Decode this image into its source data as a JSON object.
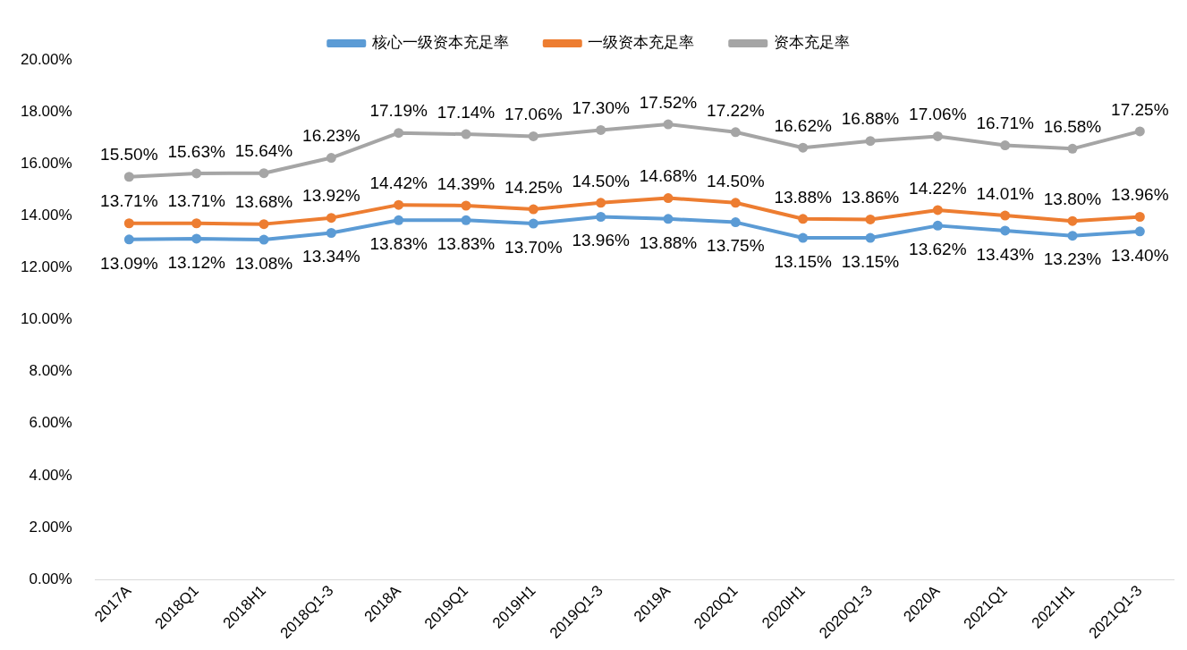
{
  "chart_data": {
    "type": "line",
    "categories": [
      "2017A",
      "2018Q1",
      "2018H1",
      "2018Q1-3",
      "2018A",
      "2019Q1",
      "2019H1",
      "2019Q1-3",
      "2019A",
      "2020Q1",
      "2020H1",
      "2020Q1-3",
      "2020A",
      "2021Q1",
      "2021H1",
      "2021Q1-3"
    ],
    "series": [
      {
        "name": "核心一级资本充足率",
        "color": "#5b9bd5",
        "values": [
          13.09,
          13.12,
          13.08,
          13.34,
          13.83,
          13.83,
          13.7,
          13.96,
          13.88,
          13.75,
          13.15,
          13.15,
          13.62,
          13.43,
          13.23,
          13.4
        ],
        "value_labels": [
          "13.09%",
          "13.12%",
          "13.08%",
          "13.34%",
          "13.83%",
          "13.83%",
          "13.70%",
          "13.96%",
          "13.88%",
          "13.75%",
          "13.15%",
          "13.15%",
          "13.62%",
          "13.43%",
          "13.23%",
          "13.40%"
        ]
      },
      {
        "name": "一级资本充足率",
        "color": "#ed7d31",
        "values": [
          13.71,
          13.71,
          13.68,
          13.92,
          14.42,
          14.39,
          14.25,
          14.5,
          14.68,
          14.5,
          13.88,
          13.86,
          14.22,
          14.01,
          13.8,
          13.96
        ],
        "value_labels": [
          "13.71%",
          "13.71%",
          "13.68%",
          "13.92%",
          "14.42%",
          "14.39%",
          "14.25%",
          "14.50%",
          "14.68%",
          "14.50%",
          "13.88%",
          "13.86%",
          "14.22%",
          "14.01%",
          "13.80%",
          "13.96%"
        ]
      },
      {
        "name": "资本充足率",
        "color": "#a5a5a5",
        "values": [
          15.5,
          15.63,
          15.64,
          16.23,
          17.19,
          17.14,
          17.06,
          17.3,
          17.52,
          17.22,
          16.62,
          16.88,
          17.06,
          16.71,
          16.58,
          17.25
        ],
        "value_labels": [
          "15.50%",
          "15.63%",
          "15.64%",
          "16.23%",
          "17.19%",
          "17.14%",
          "17.06%",
          "17.30%",
          "17.52%",
          "17.22%",
          "16.62%",
          "16.88%",
          "17.06%",
          "16.71%",
          "16.58%",
          "17.25%"
        ]
      }
    ],
    "ylim": [
      0,
      20
    ],
    "yticks": [
      {
        "value": 0,
        "label": "0.00%"
      },
      {
        "value": 2,
        "label": "2.00%"
      },
      {
        "value": 4,
        "label": "4.00%"
      },
      {
        "value": 6,
        "label": "6.00%"
      },
      {
        "value": 8,
        "label": "8.00%"
      },
      {
        "value": 10,
        "label": "10.00%"
      },
      {
        "value": 12,
        "label": "12.00%"
      },
      {
        "value": 14,
        "label": "14.00%"
      },
      {
        "value": 16,
        "label": "16.00%"
      },
      {
        "value": 18,
        "label": "18.00%"
      },
      {
        "value": 20,
        "label": "20.00%"
      }
    ],
    "grid": false,
    "legend": "top",
    "marker": "circle",
    "line_style": "solid"
  }
}
